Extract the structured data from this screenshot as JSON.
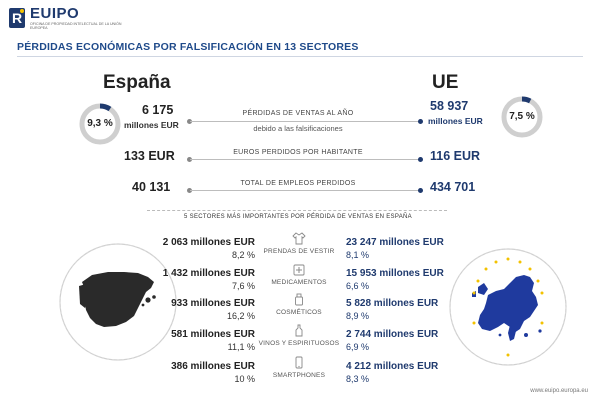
{
  "brand": {
    "name": "EUIPO",
    "subtitle": "OFICINA DE PROPIEDAD INTELECTUAL DE LA UNIÓN EUROPEA"
  },
  "title": "PÉRDIDAS ECONÓMICAS POR FALSIFICACIÓN EN 13 SECTORES",
  "spain": {
    "name": "España",
    "donut_percent_label": "9,3 %",
    "donut_fraction": 0.093,
    "sales_loss_value": "6 175",
    "sales_loss_unit": "millones EUR",
    "per_capita": "133 EUR",
    "jobs": "40 131"
  },
  "eu": {
    "name": "UE",
    "donut_percent_label": "7,5 %",
    "donut_fraction": 0.075,
    "sales_loss_value": "58 937",
    "sales_loss_unit": "millones EUR",
    "per_capita": "116 EUR",
    "jobs": "434 701"
  },
  "metrics": {
    "sales_loss_label": "PÉRDIDAS DE VENTAS AL AÑO",
    "sales_loss_sublabel": "debido a las falsificaciones",
    "per_capita_label": "EUROS PERDIDOS POR HABITANTE",
    "jobs_label": "TOTAL DE EMPLEOS PERDIDOS"
  },
  "sectors_heading": "5 SECTORES MÁS IMPORTANTES POR PÉRDIDA DE VENTAS EN ESPAÑA",
  "sectors": [
    {
      "name": "PRENDAS DE VESTIR",
      "icon": "shirt-icon",
      "es_value": "2 063 millones EUR",
      "es_pct": "8,2 %",
      "eu_value": "23 247 millones EUR",
      "eu_pct": "8,1 %"
    },
    {
      "name": "MEDICAMENTOS",
      "icon": "medicine-icon",
      "es_value": "1 432 millones EUR",
      "es_pct": "7,6 %",
      "eu_value": "15 953 millones EUR",
      "eu_pct": "6,6 %"
    },
    {
      "name": "COSMÉTICOS",
      "icon": "cosmetics-icon",
      "es_value": "933 millones EUR",
      "es_pct": "16,2 %",
      "eu_value": "5 828 millones EUR",
      "eu_pct": "8,9 %"
    },
    {
      "name": "VINOS Y ESPIRITUOSOS",
      "icon": "bottle-icon",
      "es_value": "581 millones EUR",
      "es_pct": "11,1 %",
      "eu_value": "2 744 millones EUR",
      "eu_pct": "6,9 %"
    },
    {
      "name": "SMARTPHONES",
      "icon": "smartphone-icon",
      "es_value": "386 millones EUR",
      "es_pct": "10 %",
      "eu_value": "4 212 millones EUR",
      "eu_pct": "8,3 %"
    }
  ],
  "footer": "www.euipo.europa.eu",
  "colors": {
    "brand_blue": "#1f3a6e",
    "title_blue": "#1f4a8a",
    "donut_track": "#cfcfcf",
    "donut_fill": "#1f3a6e",
    "spain_map": "#2a2a2a",
    "eu_map": "#1f3a9e"
  }
}
